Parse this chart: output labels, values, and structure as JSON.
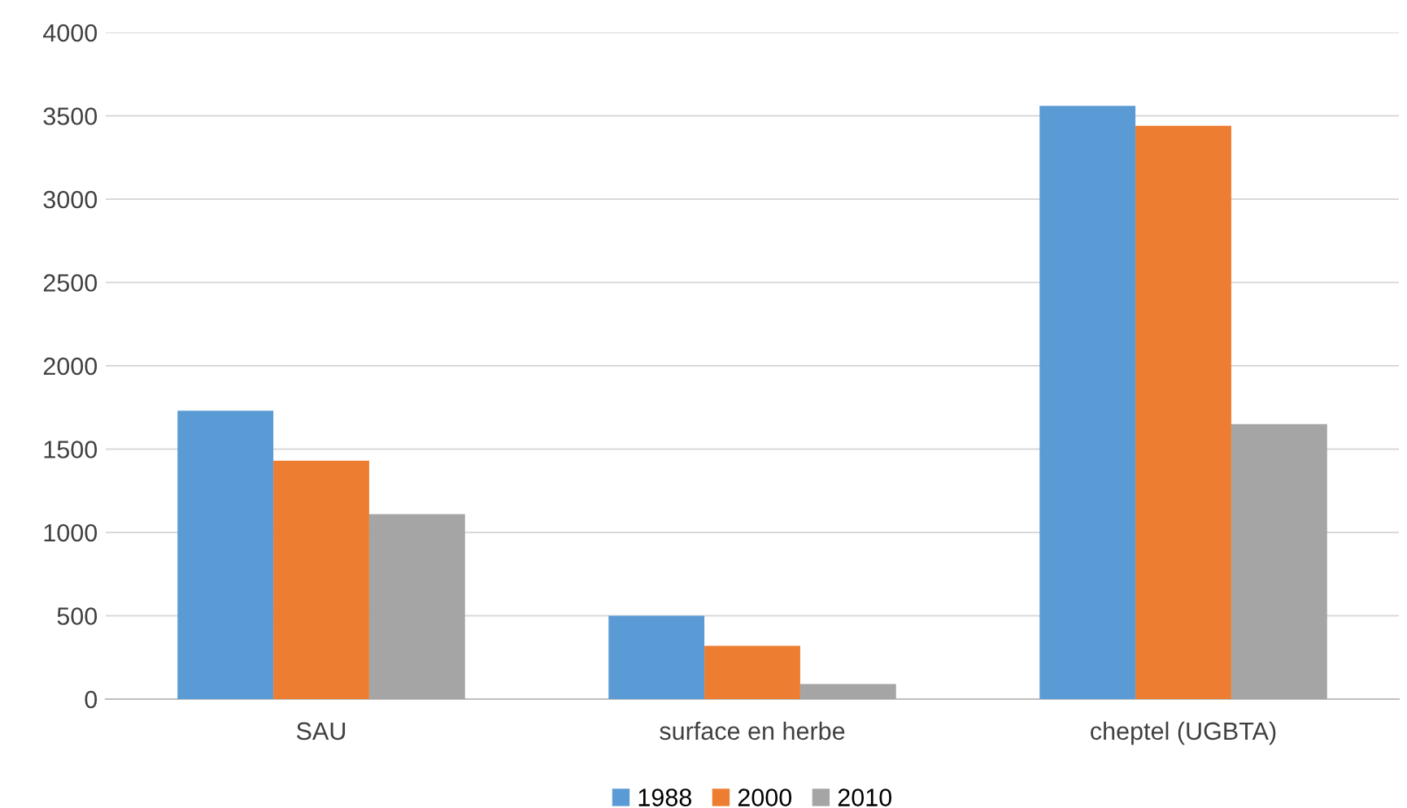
{
  "chart_data": {
    "type": "bar",
    "categories": [
      "SAU",
      "surface en herbe",
      "cheptel (UGBTA)"
    ],
    "series": [
      {
        "name": "1988",
        "color": "#5b9bd5",
        "values": [
          1730,
          500,
          3560
        ]
      },
      {
        "name": "2000",
        "color": "#ed7d31",
        "values": [
          1430,
          320,
          3440
        ]
      },
      {
        "name": "2010",
        "color": "#a5a5a5",
        "values": [
          1110,
          90,
          1650
        ]
      }
    ],
    "ylim": [
      0,
      4000
    ],
    "yticks": [
      0,
      500,
      1000,
      1500,
      2000,
      2500,
      3000,
      3500,
      4000
    ],
    "grid": "y",
    "legend": "bottom"
  }
}
